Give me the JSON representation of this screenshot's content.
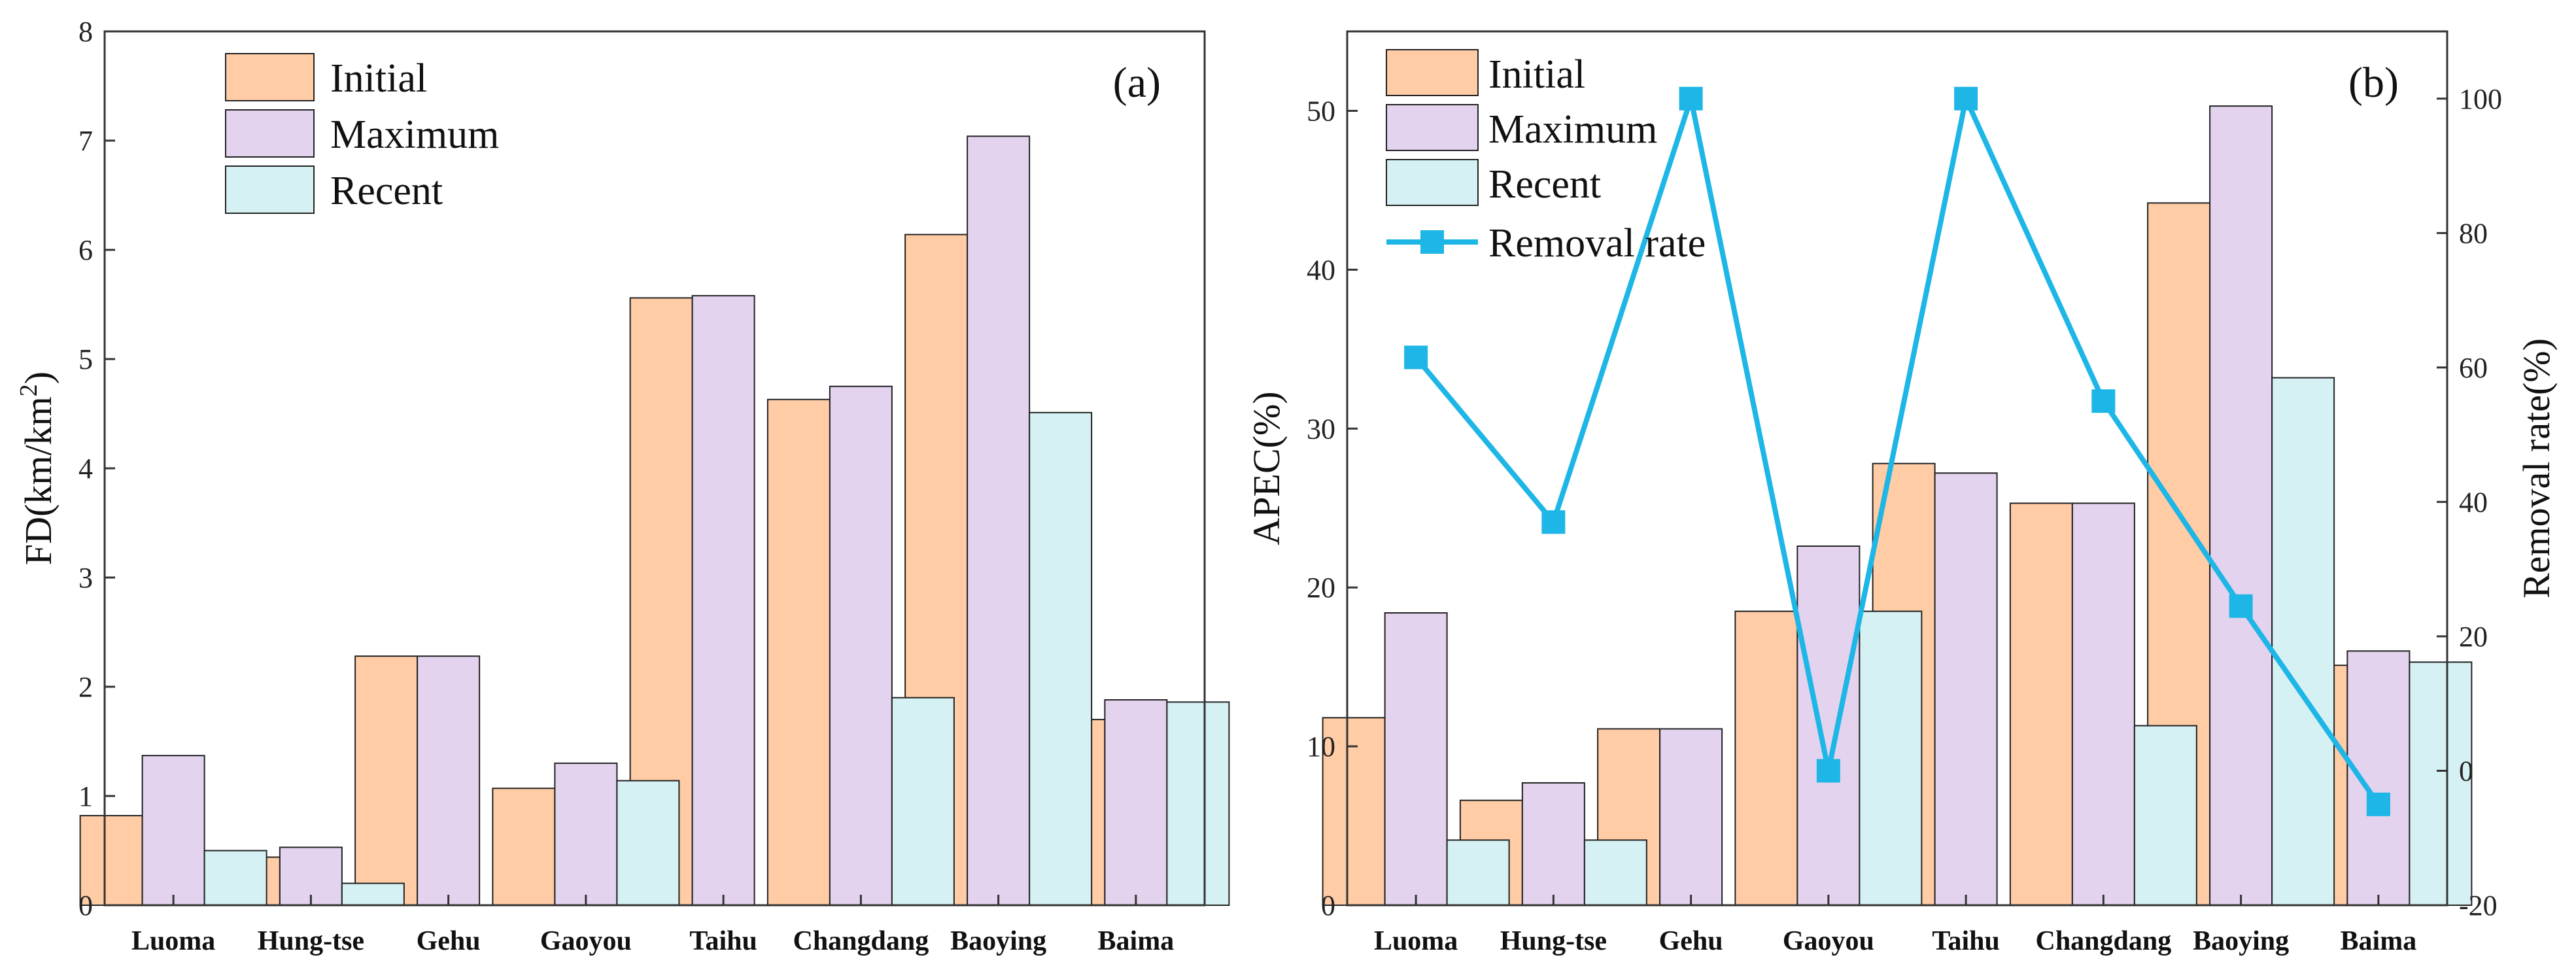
{
  "colors": {
    "initial": "#FFCCA6",
    "maximum": "#E3D3EF",
    "recent": "#D6F1F3",
    "removal": "#1EB6E6",
    "bar_stroke": "#222222"
  },
  "chart_data": [
    {
      "type": "bar",
      "panel_label": "(a)",
      "title": "",
      "xlabel": "",
      "ylabel": "FD(km/km",
      "ylabel_sup": "2",
      "ylabel_close": ")",
      "ylim": [
        0,
        8
      ],
      "yticks": [
        "0",
        "1",
        "2",
        "3",
        "4",
        "5",
        "6",
        "7",
        "8"
      ],
      "categories": [
        "Luoma",
        "Hung-tse",
        "Gehu",
        "Gaoyou",
        "Taihu",
        "Changdang",
        "Baoying",
        "Baima"
      ],
      "legend_position": "top-left",
      "series": [
        {
          "name": "Initial",
          "values": [
            0.82,
            0.44,
            2.28,
            1.07,
            5.56,
            4.63,
            6.14,
            1.7
          ]
        },
        {
          "name": "Maximum",
          "values": [
            1.37,
            0.53,
            2.28,
            1.3,
            5.58,
            4.75,
            7.04,
            1.88
          ]
        },
        {
          "name": "Recent",
          "values": [
            0.5,
            0.2,
            0,
            1.14,
            0,
            1.9,
            4.51,
            1.86
          ]
        }
      ]
    },
    {
      "type": "bar",
      "panel_label": "(b)",
      "title": "",
      "xlabel": "",
      "ylabel": "APEC(%)",
      "ylim": [
        0,
        55
      ],
      "yticks": [
        "0",
        "10",
        "20",
        "30",
        "40",
        "50"
      ],
      "y2label": "Removal rate(%)",
      "y2lim": [
        -20,
        110
      ],
      "y2ticks": [
        "-20",
        "0",
        "20",
        "40",
        "60",
        "80",
        "100"
      ],
      "categories": [
        "Luoma",
        "Hung-tse",
        "Gehu",
        "Gaoyou",
        "Taihu",
        "Changdang",
        "Baoying",
        "Baima"
      ],
      "legend_position": "top-left",
      "series": [
        {
          "name": "Initial",
          "values": [
            11.8,
            6.6,
            11.1,
            18.5,
            27.8,
            25.3,
            44.2,
            15.1
          ]
        },
        {
          "name": "Maximum",
          "values": [
            18.4,
            7.7,
            11.1,
            22.6,
            27.2,
            25.3,
            50.3,
            16.0
          ]
        },
        {
          "name": "Recent",
          "values": [
            4.1,
            4.1,
            0,
            18.5,
            0,
            11.3,
            33.2,
            15.3
          ]
        }
      ],
      "line_series": {
        "name": "Removal rate",
        "axis": "right",
        "values": [
          61.5,
          37,
          100,
          0,
          100,
          55,
          24.5,
          -5
        ]
      }
    }
  ]
}
